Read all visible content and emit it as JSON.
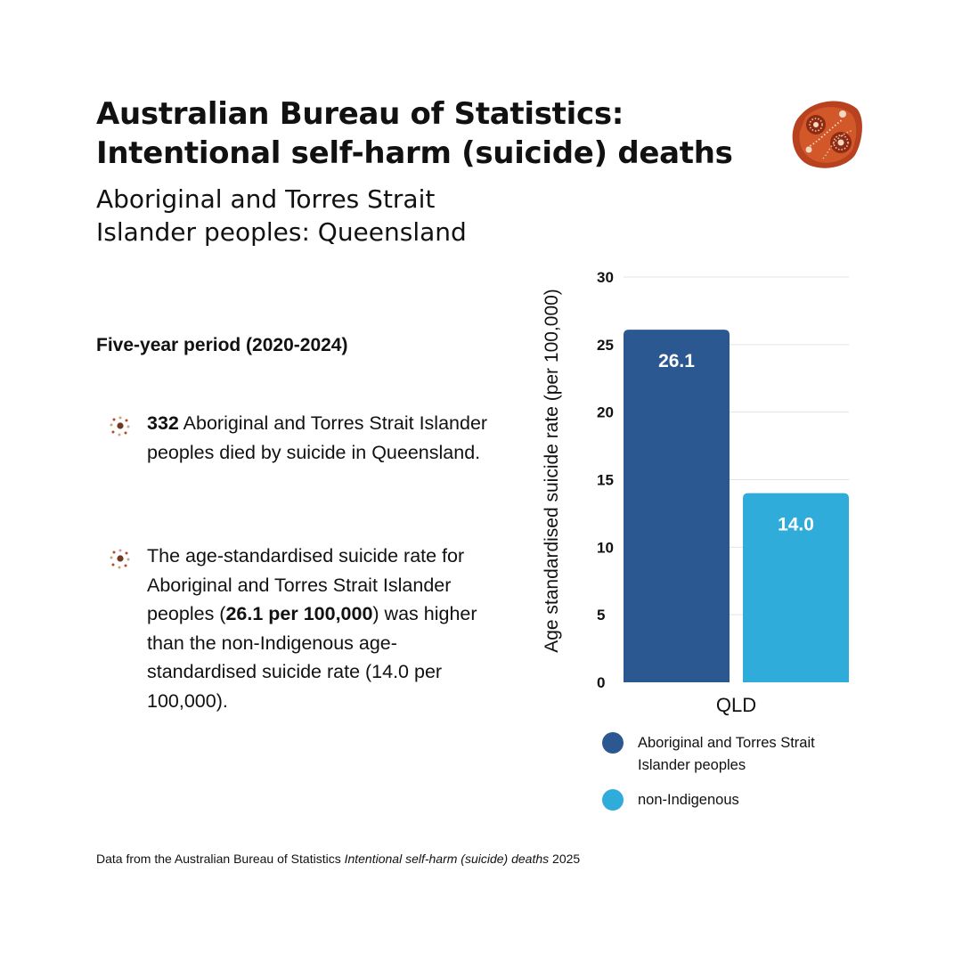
{
  "header": {
    "title_line1": "Australian Bureau of Statistics:",
    "title_line2": "Intentional self-harm (suicide) deaths",
    "subtitle_line1": "Aboriginal and Torres Strait",
    "subtitle_line2": "Islander peoples: Queensland",
    "logo_icon": "dot-painting-stone-icon"
  },
  "summary": {
    "period": "Five-year period (2020-2024)",
    "bullet_icon": "dot-circle-icon",
    "bullet1": {
      "bold": "332",
      "text": " Aboriginal and Torres Strait Islander peoples died by suicide in Queensland."
    },
    "bullet2": {
      "text_before": "The age-standardised suicide rate for Aboriginal and Torres Strait Islander peoples (",
      "bold": "26.1 per 100,000",
      "text_after": ") was higher than the non-Indigenous age-standardised suicide rate (14.0 per 100,000)."
    }
  },
  "chart_data": {
    "type": "bar",
    "categories": [
      "QLD"
    ],
    "series": [
      {
        "name": "Aboriginal and Torres Strait Islander peoples",
        "values": [
          26.1
        ],
        "label": "26.1",
        "color": "#2b5890"
      },
      {
        "name": "non-Indigenous",
        "values": [
          14.0
        ],
        "label": "14.0",
        "color": "#30acda"
      }
    ],
    "ylabel": "Age standardised suicide rate (per 100,000)",
    "xlabel": "",
    "ylim": [
      0,
      30
    ],
    "yticks": [
      0,
      5,
      10,
      15,
      20,
      25,
      30
    ],
    "grid": true,
    "legend_position": "bottom"
  },
  "legend": {
    "item1": "Aboriginal and Torres Strait Islander peoples",
    "item2": "non-Indigenous"
  },
  "footer": {
    "source_prefix": "Data from the Australian Bureau of Statistics ",
    "source_title": "Intentional self-harm (suicide) deaths",
    "source_suffix": " 2025"
  }
}
